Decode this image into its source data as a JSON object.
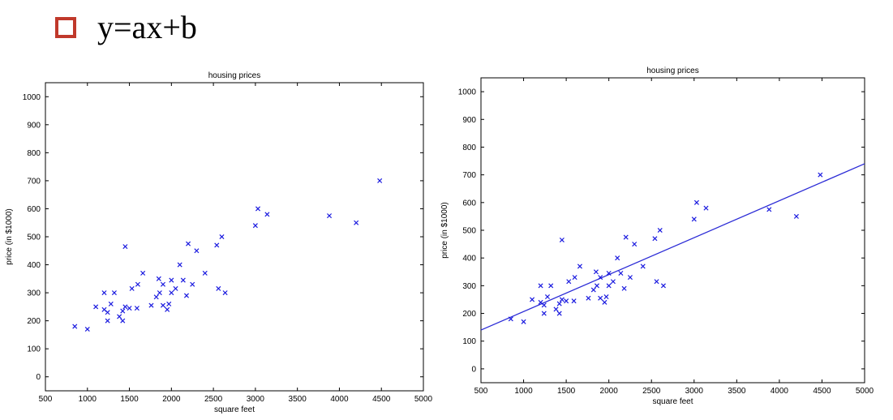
{
  "heading": {
    "equation": "y=ax+b",
    "bullet_color": "#c0392b"
  },
  "chart_data": [
    {
      "type": "scatter",
      "title": "housing prices",
      "xlabel": "square feet",
      "ylabel": "price (in $1000)",
      "xlim": [
        500,
        5000
      ],
      "ylim": [
        -50,
        1050
      ],
      "xticks": [
        500,
        1000,
        1500,
        2000,
        2500,
        3000,
        3500,
        4000,
        4500,
        5000
      ],
      "yticks": [
        0,
        100,
        200,
        300,
        400,
        500,
        600,
        700,
        800,
        900,
        1000
      ],
      "marker": "x",
      "color": "#1a1adf",
      "points": [
        [
          850,
          180
        ],
        [
          1000,
          170
        ],
        [
          1100,
          250
        ],
        [
          1200,
          300
        ],
        [
          1200,
          240
        ],
        [
          1240,
          230
        ],
        [
          1240,
          200
        ],
        [
          1280,
          260
        ],
        [
          1320,
          300
        ],
        [
          1380,
          215
        ],
        [
          1420,
          235
        ],
        [
          1420,
          200
        ],
        [
          1450,
          250
        ],
        [
          1450,
          465
        ],
        [
          1500,
          245
        ],
        [
          1530,
          315
        ],
        [
          1590,
          245
        ],
        [
          1600,
          330
        ],
        [
          1660,
          370
        ],
        [
          1760,
          255
        ],
        [
          1820,
          285
        ],
        [
          1850,
          350
        ],
        [
          1860,
          300
        ],
        [
          1900,
          330
        ],
        [
          1900,
          255
        ],
        [
          1950,
          240
        ],
        [
          1970,
          260
        ],
        [
          2000,
          345
        ],
        [
          2000,
          300
        ],
        [
          2050,
          315
        ],
        [
          2100,
          400
        ],
        [
          2140,
          345
        ],
        [
          2180,
          290
        ],
        [
          2200,
          475
        ],
        [
          2250,
          330
        ],
        [
          2300,
          450
        ],
        [
          2400,
          370
        ],
        [
          2540,
          470
        ],
        [
          2560,
          315
        ],
        [
          2600,
          500
        ],
        [
          2640,
          300
        ],
        [
          3000,
          540
        ],
        [
          3030,
          600
        ],
        [
          3140,
          580
        ],
        [
          3880,
          575
        ],
        [
          4200,
          550
        ],
        [
          4480,
          700
        ]
      ]
    },
    {
      "type": "scatter",
      "title": "housing prices",
      "xlabel": "square feet",
      "ylabel": "price (in $1000)",
      "xlim": [
        500,
        5000
      ],
      "ylim": [
        -50,
        1050
      ],
      "xticks": [
        500,
        1000,
        1500,
        2000,
        2500,
        3000,
        3500,
        4000,
        4500,
        5000
      ],
      "yticks": [
        0,
        100,
        200,
        300,
        400,
        500,
        600,
        700,
        800,
        900,
        1000
      ],
      "marker": "x",
      "color": "#1a1adf",
      "points": [
        [
          850,
          180
        ],
        [
          1000,
          170
        ],
        [
          1100,
          250
        ],
        [
          1200,
          300
        ],
        [
          1200,
          240
        ],
        [
          1240,
          230
        ],
        [
          1240,
          200
        ],
        [
          1280,
          260
        ],
        [
          1320,
          300
        ],
        [
          1380,
          215
        ],
        [
          1420,
          235
        ],
        [
          1420,
          200
        ],
        [
          1450,
          250
        ],
        [
          1450,
          465
        ],
        [
          1500,
          245
        ],
        [
          1530,
          315
        ],
        [
          1590,
          245
        ],
        [
          1600,
          330
        ],
        [
          1660,
          370
        ],
        [
          1760,
          255
        ],
        [
          1820,
          285
        ],
        [
          1850,
          350
        ],
        [
          1860,
          300
        ],
        [
          1900,
          330
        ],
        [
          1900,
          255
        ],
        [
          1950,
          240
        ],
        [
          1970,
          260
        ],
        [
          2000,
          345
        ],
        [
          2000,
          300
        ],
        [
          2050,
          315
        ],
        [
          2100,
          400
        ],
        [
          2140,
          345
        ],
        [
          2180,
          290
        ],
        [
          2200,
          475
        ],
        [
          2250,
          330
        ],
        [
          2300,
          450
        ],
        [
          2400,
          370
        ],
        [
          2540,
          470
        ],
        [
          2560,
          315
        ],
        [
          2600,
          500
        ],
        [
          2640,
          300
        ],
        [
          3000,
          540
        ],
        [
          3030,
          600
        ],
        [
          3140,
          580
        ],
        [
          3880,
          575
        ],
        [
          4200,
          550
        ],
        [
          4480,
          700
        ]
      ],
      "fit_line": {
        "x": [
          500,
          5000
        ],
        "y": [
          140,
          740
        ],
        "color": "#2b2bd6"
      }
    }
  ]
}
